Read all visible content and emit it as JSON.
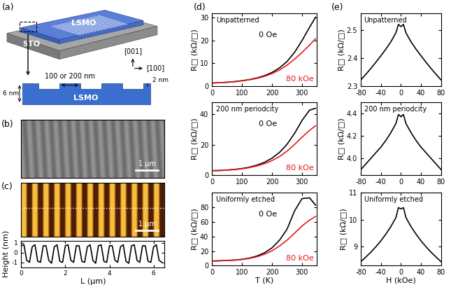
{
  "panels": {
    "a": "(a)",
    "b": "(b)",
    "c": "(c)",
    "d": "(d)",
    "e": "(e)"
  },
  "schematic": {
    "film": "LSMO",
    "substrate": "STO",
    "axis_up": "[001]",
    "axis_right": "[100]",
    "cross_section": {
      "material": "LSMO",
      "width": "100 or 200 nm",
      "thickness": "6 nm",
      "depth": "2 nm"
    }
  },
  "sem_image": {
    "scale_bar": "1 μm"
  },
  "afm_image": {
    "scale_bar": "1 μm"
  },
  "chart_data": [
    {
      "type": "line",
      "x_label": "L (μm)",
      "y_label": "Height (nm)",
      "xlim": [
        0,
        6.5
      ],
      "xticks": [
        0,
        2,
        4,
        6
      ],
      "ylim": [
        -1.5,
        1.2
      ],
      "yticks": [
        -1,
        0,
        1
      ],
      "x": [
        0,
        0.125,
        0.25,
        0.375,
        0.5,
        0.625,
        0.75,
        0.875,
        1.0,
        1.125,
        1.25,
        1.375,
        1.5,
        1.625,
        1.75,
        1.875,
        2.0,
        2.125,
        2.25,
        2.375,
        2.5,
        2.625,
        2.75,
        2.875,
        3.0,
        3.125,
        3.25,
        3.375,
        3.5,
        3.625,
        3.75,
        3.875,
        4.0,
        4.125,
        4.25,
        4.375,
        4.5,
        4.625,
        4.75,
        4.875,
        5.0,
        5.125,
        5.25,
        5.375,
        5.5,
        5.625,
        5.75,
        5.875,
        6.0,
        6.125,
        6.25,
        6.375
      ],
      "series": [
        {
          "color": "#000000",
          "values": [
            0.7,
            0.8,
            -0.8,
            -1.0,
            0.6,
            0.8,
            -0.9,
            -1.0,
            0.7,
            0.7,
            -0.8,
            -1.1,
            0.6,
            0.8,
            -0.9,
            -1.0,
            0.7,
            0.8,
            -0.8,
            -1.0,
            0.7,
            0.7,
            -0.9,
            -1.0,
            0.6,
            0.8,
            -0.8,
            -1.1,
            0.7,
            0.8,
            -0.9,
            -1.0,
            0.7,
            0.7,
            -0.8,
            -1.0,
            0.6,
            0.8,
            -0.9,
            -1.1,
            0.7,
            0.8,
            -0.8,
            -1.0,
            0.7,
            0.7,
            -0.9,
            -1.0,
            0.6,
            0.8,
            -0.8,
            -1.0
          ]
        }
      ]
    },
    {
      "type": "line",
      "title": "Unpatterned",
      "y_label": "R□ (kΩ/□)",
      "xlim": [
        0,
        350
      ],
      "xticks": [
        0,
        100,
        200,
        300
      ],
      "ylim": [
        0,
        32
      ],
      "yticks": [
        0,
        10,
        20,
        30
      ],
      "x": [
        5,
        25,
        50,
        75,
        100,
        125,
        150,
        175,
        200,
        225,
        250,
        275,
        300,
        325,
        345
      ],
      "series": [
        {
          "name": "0 Oe",
          "color": "#000000",
          "values": [
            1.4,
            1.5,
            1.7,
            2.0,
            2.4,
            2.9,
            3.6,
            4.6,
            6.0,
            8.0,
            10.8,
            14.8,
            20.0,
            25.8,
            30.2
          ]
        },
        {
          "name": "80 kOe",
          "color": "#e41a1c",
          "values": [
            1.4,
            1.5,
            1.7,
            1.9,
            2.3,
            2.8,
            3.4,
            4.3,
            5.5,
            7.1,
            9.2,
            11.8,
            14.8,
            18.0,
            20.8
          ]
        }
      ]
    },
    {
      "type": "line",
      "title": "200 nm periodcity",
      "y_label": "R□ (kΩ/□)",
      "xlim": [
        0,
        350
      ],
      "xticks": [
        0,
        100,
        200,
        300
      ],
      "ylim": [
        0,
        48
      ],
      "yticks": [
        0,
        20,
        40
      ],
      "x": [
        5,
        25,
        50,
        75,
        100,
        125,
        150,
        175,
        200,
        225,
        250,
        275,
        300,
        325,
        345
      ],
      "series": [
        {
          "name": "0 Oe",
          "color": "#000000",
          "values": [
            3.0,
            3.1,
            3.4,
            3.8,
            4.4,
            5.3,
            6.6,
            8.5,
            11.2,
            15.0,
            20.3,
            27.5,
            36.0,
            42.8,
            44.0
          ]
        },
        {
          "name": "80 kOe",
          "color": "#e41a1c",
          "values": [
            3.0,
            3.1,
            3.3,
            3.7,
            4.2,
            5.0,
            6.1,
            7.6,
            9.6,
            12.3,
            15.8,
            20.2,
            25.0,
            29.5,
            32.5
          ]
        }
      ]
    },
    {
      "type": "line",
      "title": "Uniformly etched",
      "x_label": "T (K)",
      "y_label": "R□ (kΩ/□)",
      "xlim": [
        0,
        350
      ],
      "xticks": [
        0,
        100,
        200,
        300
      ],
      "ylim": [
        0,
        100
      ],
      "yticks": [
        0,
        20,
        40,
        60,
        80
      ],
      "x": [
        5,
        25,
        50,
        75,
        100,
        125,
        150,
        175,
        200,
        225,
        250,
        275,
        300,
        325,
        345
      ],
      "series": [
        {
          "name": "0 Oe",
          "color": "#000000",
          "values": [
            6.5,
            6.8,
            7.2,
            7.8,
            8.8,
            10.5,
            13.3,
            17.8,
            24.5,
            35.0,
            50.0,
            75.0,
            92.0,
            93.0,
            83.0
          ]
        },
        {
          "name": "80 kOe",
          "color": "#e41a1c",
          "values": [
            6.5,
            6.7,
            7.1,
            7.6,
            8.5,
            10.0,
            12.3,
            15.7,
            20.5,
            27.0,
            35.0,
            44.5,
            54.5,
            62.5,
            67.5
          ]
        }
      ]
    },
    {
      "type": "line",
      "title": "Unpatterned",
      "y_label": "R□ (kΩ/□)",
      "xlim": [
        -80,
        80
      ],
      "xticks": [
        -80,
        -40,
        0,
        40,
        80
      ],
      "ylim": [
        2.3,
        2.56
      ],
      "yticks": [
        2.3,
        2.4,
        2.5
      ],
      "x": [
        -80,
        -70,
        -60,
        -50,
        -40,
        -30,
        -20,
        -10,
        -5,
        -2,
        0,
        2,
        5,
        10,
        20,
        30,
        40,
        50,
        60,
        70,
        80
      ],
      "series": [
        {
          "color": "#000000",
          "values": [
            2.322,
            2.342,
            2.363,
            2.385,
            2.408,
            2.432,
            2.458,
            2.49,
            2.52,
            2.515,
            2.512,
            2.515,
            2.52,
            2.49,
            2.458,
            2.432,
            2.408,
            2.385,
            2.363,
            2.342,
            2.322
          ]
        }
      ]
    },
    {
      "type": "line",
      "title": "200 nm periodcity",
      "y_label": "R□ (kΩ/□)",
      "xlim": [
        -80,
        80
      ],
      "xticks": [
        -80,
        -40,
        0,
        40,
        80
      ],
      "ylim": [
        3.85,
        4.5
      ],
      "yticks": [
        {
          "value": 4.0,
          "label": "4.0"
        },
        {
          "value": 4.2,
          "label": "4.2"
        },
        {
          "value": 4.4,
          "label": "4.4"
        }
      ],
      "x": [
        -80,
        -70,
        -60,
        -50,
        -40,
        -30,
        -20,
        -10,
        -5,
        -2,
        0,
        2,
        5,
        10,
        20,
        30,
        40,
        50,
        60,
        70,
        80
      ],
      "series": [
        {
          "color": "#000000",
          "values": [
            3.9,
            3.95,
            4.0,
            4.05,
            4.1,
            4.16,
            4.23,
            4.31,
            4.39,
            4.38,
            4.37,
            4.38,
            4.39,
            4.31,
            4.23,
            4.16,
            4.1,
            4.05,
            4.0,
            3.95,
            3.9
          ]
        }
      ]
    },
    {
      "type": "line",
      "title": "Uniformly etched",
      "x_label": "H (kOe)",
      "y_label": "R□ (kΩ/□)",
      "xlim": [
        -80,
        80
      ],
      "xticks": [
        -80,
        -40,
        0,
        40,
        80
      ],
      "ylim": [
        8.3,
        11.0
      ],
      "yticks": [
        9,
        10,
        11
      ],
      "x": [
        -80,
        -70,
        -60,
        -50,
        -40,
        -30,
        -20,
        -10,
        -5,
        -2,
        0,
        2,
        5,
        10,
        20,
        30,
        40,
        50,
        60,
        70,
        80
      ],
      "series": [
        {
          "color": "#000000",
          "values": [
            8.45,
            8.62,
            8.8,
            9.0,
            9.22,
            9.47,
            9.75,
            10.08,
            10.45,
            10.42,
            10.4,
            10.42,
            10.45,
            10.08,
            9.75,
            9.47,
            9.22,
            9.0,
            8.8,
            8.62,
            8.45
          ]
        }
      ]
    }
  ]
}
